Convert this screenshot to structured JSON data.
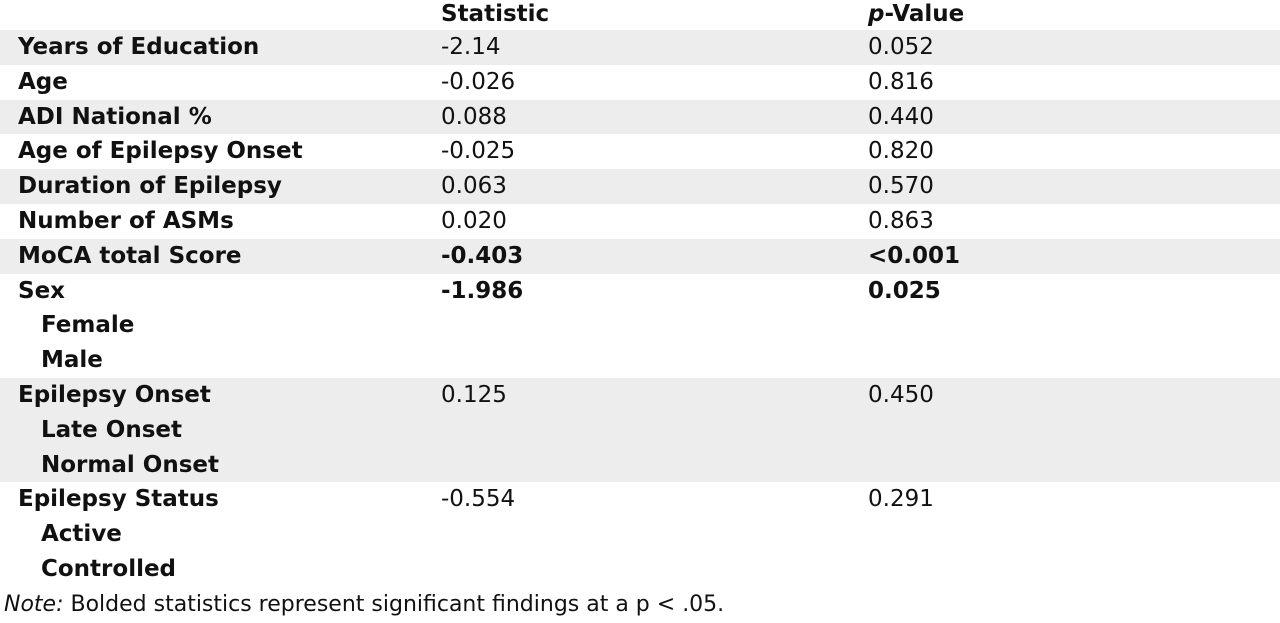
{
  "table": {
    "header": [
      "Statistic",
      "p-Value"
    ],
    "rows": [
      {
        "label": "Years of Education",
        "statistic": "-2.14",
        "p_value": "0.052",
        "bold": false
      },
      {
        "label": "Age",
        "statistic": "-0.026",
        "p_value": "0.816",
        "bold": false
      },
      {
        "label": "ADI National %",
        "statistic": "0.088",
        "p_value": "0.440",
        "bold": false
      },
      {
        "label": "Age of Epilepsy Onset",
        "statistic": "-0.025",
        "p_value": "0.820",
        "bold": false
      },
      {
        "label": "Duration of Epilepsy",
        "statistic": "0.063",
        "p_value": "0.570",
        "bold": false
      },
      {
        "label": "Number of ASMs",
        "statistic": "0.020",
        "p_value": "0.863",
        "bold": false
      },
      {
        "label": "MoCA total Score",
        "statistic": "-0.403",
        "p_value": "<0.001",
        "bold": true
      },
      {
        "label": "Sex",
        "statistic": "-1.986",
        "p_value": "0.025",
        "bold": true,
        "sublabels": [
          "Female",
          "Male"
        ]
      },
      {
        "label": "Epilepsy Onset",
        "statistic": "0.125",
        "p_value": "0.450",
        "bold": false,
        "sublabels": [
          "Late Onset",
          "Normal Onset"
        ]
      },
      {
        "label": "Epilepsy Status",
        "statistic": "-0.554",
        "p_value": "0.291",
        "bold": false,
        "sublabels": [
          "Active",
          "Controlled"
        ]
      }
    ]
  },
  "note": {
    "label": "Note:",
    "text": "Bolded statistics represent significant findings at a p < .05."
  }
}
